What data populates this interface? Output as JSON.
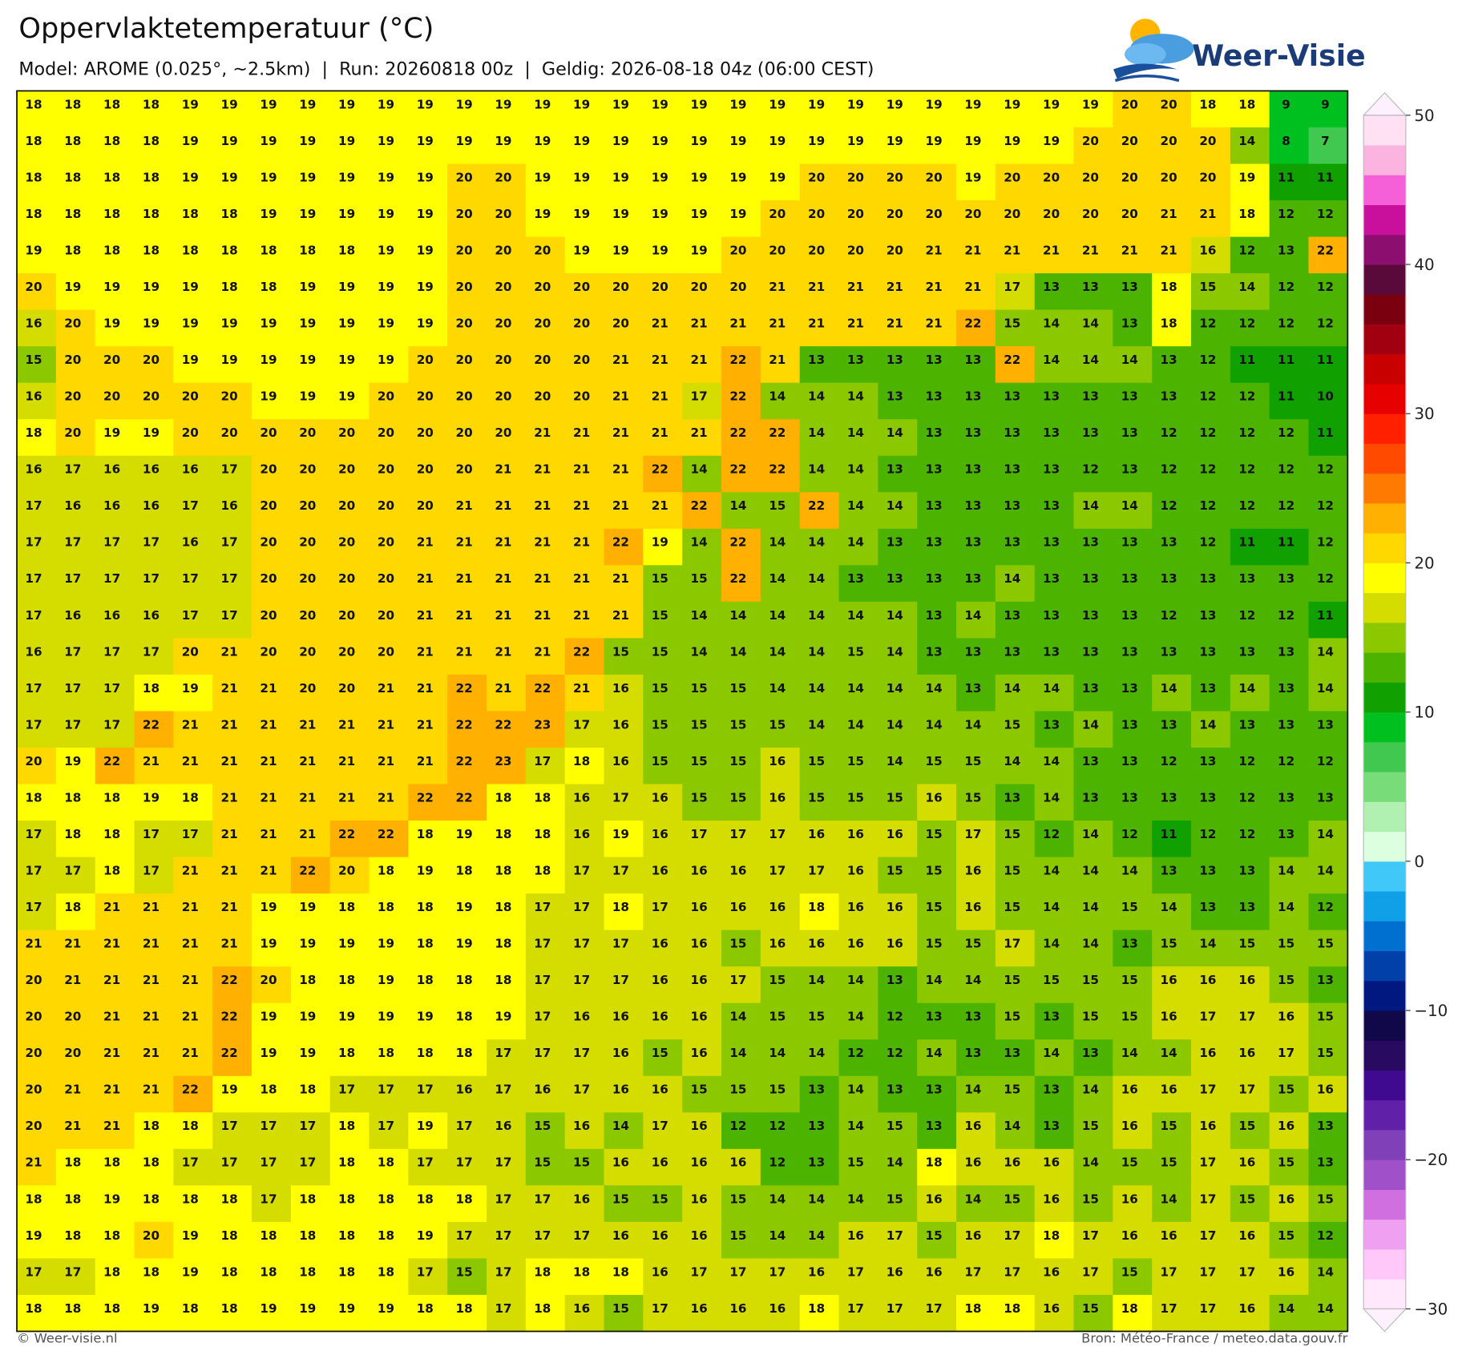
{
  "header": {
    "title": "Oppervlaktetemperatuur (°C)",
    "subtitle": "Model: AROME (0.025°, ~2.5km)  |  Run: 20260818 00z  |  Geldig: 2026-08-18 04z (06:00 CEST)",
    "logo": "Weer-Visie"
  },
  "map": {
    "values": [
      [
        18,
        18,
        18,
        18,
        19,
        19,
        19,
        19,
        19,
        19,
        19,
        19,
        19,
        19,
        19,
        19,
        19,
        19,
        19,
        19,
        19,
        19,
        19,
        19,
        19,
        19,
        19,
        19,
        20,
        20,
        18,
        18,
        9,
        9
      ],
      [
        18,
        18,
        18,
        18,
        19,
        19,
        19,
        19,
        19,
        19,
        19,
        19,
        19,
        19,
        19,
        19,
        19,
        19,
        19,
        19,
        19,
        19,
        19,
        19,
        19,
        19,
        19,
        20,
        20,
        20,
        20,
        14,
        8,
        7
      ],
      [
        18,
        18,
        18,
        18,
        19,
        19,
        19,
        19,
        19,
        19,
        19,
        20,
        20,
        19,
        19,
        19,
        19,
        19,
        19,
        19,
        20,
        20,
        20,
        20,
        19,
        20,
        20,
        20,
        20,
        20,
        20,
        19,
        11,
        11
      ],
      [
        18,
        18,
        18,
        18,
        18,
        18,
        19,
        19,
        19,
        19,
        19,
        20,
        20,
        19,
        19,
        19,
        19,
        19,
        19,
        20,
        20,
        20,
        20,
        20,
        20,
        20,
        20,
        20,
        20,
        21,
        21,
        18,
        12,
        12
      ],
      [
        19,
        18,
        18,
        18,
        18,
        18,
        18,
        18,
        18,
        19,
        19,
        20,
        20,
        20,
        19,
        19,
        19,
        19,
        20,
        20,
        20,
        20,
        20,
        21,
        21,
        21,
        21,
        21,
        21,
        21,
        16,
        12,
        13,
        22
      ],
      [
        20,
        19,
        19,
        19,
        19,
        18,
        18,
        19,
        19,
        19,
        19,
        20,
        20,
        20,
        20,
        20,
        20,
        20,
        20,
        21,
        21,
        21,
        21,
        21,
        21,
        17,
        13,
        13,
        13,
        18,
        15,
        14,
        12,
        12
      ],
      [
        16,
        20,
        19,
        19,
        19,
        19,
        19,
        19,
        19,
        19,
        19,
        20,
        20,
        20,
        20,
        20,
        21,
        21,
        21,
        21,
        21,
        21,
        21,
        21,
        22,
        15,
        14,
        14,
        13,
        18,
        12,
        12,
        12,
        12
      ],
      [
        15,
        20,
        20,
        20,
        19,
        19,
        19,
        19,
        19,
        19,
        20,
        20,
        20,
        20,
        20,
        21,
        21,
        21,
        22,
        21,
        13,
        13,
        13,
        13,
        13,
        22,
        14,
        14,
        14,
        13,
        12,
        11,
        11,
        11
      ],
      [
        16,
        20,
        20,
        20,
        20,
        20,
        19,
        19,
        19,
        20,
        20,
        20,
        20,
        20,
        20,
        21,
        21,
        17,
        22,
        14,
        14,
        14,
        13,
        13,
        13,
        13,
        13,
        13,
        13,
        13,
        12,
        12,
        11,
        10
      ],
      [
        18,
        20,
        19,
        19,
        20,
        20,
        20,
        20,
        20,
        20,
        20,
        20,
        20,
        21,
        21,
        21,
        21,
        21,
        22,
        22,
        14,
        14,
        14,
        13,
        13,
        13,
        13,
        13,
        13,
        12,
        12,
        12,
        12,
        11
      ],
      [
        16,
        17,
        16,
        16,
        16,
        17,
        20,
        20,
        20,
        20,
        20,
        20,
        21,
        21,
        21,
        21,
        22,
        14,
        22,
        22,
        14,
        14,
        13,
        13,
        13,
        13,
        13,
        12,
        13,
        12,
        12,
        12,
        12,
        12
      ],
      [
        17,
        16,
        16,
        16,
        17,
        16,
        20,
        20,
        20,
        20,
        20,
        21,
        21,
        21,
        21,
        21,
        21,
        22,
        14,
        15,
        22,
        14,
        14,
        13,
        13,
        13,
        13,
        14,
        14,
        12,
        12,
        12,
        12,
        12
      ],
      [
        17,
        17,
        17,
        17,
        16,
        17,
        20,
        20,
        20,
        20,
        21,
        21,
        21,
        21,
        21,
        22,
        19,
        14,
        22,
        14,
        14,
        14,
        13,
        13,
        13,
        13,
        13,
        13,
        13,
        13,
        12,
        11,
        11,
        12
      ],
      [
        17,
        17,
        17,
        17,
        17,
        17,
        20,
        20,
        20,
        20,
        21,
        21,
        21,
        21,
        21,
        21,
        15,
        15,
        22,
        14,
        14,
        13,
        13,
        13,
        13,
        14,
        13,
        13,
        13,
        13,
        13,
        13,
        13,
        12
      ],
      [
        17,
        16,
        16,
        16,
        17,
        17,
        20,
        20,
        20,
        20,
        21,
        21,
        21,
        21,
        21,
        21,
        15,
        14,
        14,
        14,
        14,
        14,
        14,
        13,
        14,
        13,
        13,
        13,
        13,
        12,
        13,
        12,
        12,
        11
      ],
      [
        16,
        17,
        17,
        17,
        20,
        21,
        20,
        20,
        20,
        20,
        21,
        21,
        21,
        21,
        22,
        15,
        15,
        14,
        14,
        14,
        14,
        15,
        14,
        13,
        13,
        13,
        13,
        13,
        13,
        13,
        13,
        13,
        13,
        14
      ],
      [
        17,
        17,
        17,
        18,
        19,
        21,
        21,
        20,
        20,
        21,
        21,
        22,
        21,
        22,
        21,
        16,
        15,
        15,
        15,
        14,
        14,
        14,
        14,
        14,
        13,
        14,
        14,
        13,
        13,
        14,
        13,
        14,
        13,
        14
      ],
      [
        17,
        17,
        17,
        22,
        21,
        21,
        21,
        21,
        21,
        21,
        21,
        22,
        22,
        23,
        17,
        16,
        15,
        15,
        15,
        15,
        14,
        14,
        14,
        14,
        14,
        15,
        13,
        14,
        13,
        13,
        14,
        13,
        13,
        13
      ],
      [
        20,
        19,
        22,
        21,
        21,
        21,
        21,
        21,
        21,
        21,
        21,
        22,
        23,
        17,
        18,
        16,
        15,
        15,
        15,
        16,
        15,
        15,
        14,
        15,
        15,
        14,
        14,
        13,
        13,
        12,
        13,
        12,
        12,
        12
      ],
      [
        18,
        18,
        18,
        19,
        18,
        21,
        21,
        21,
        21,
        21,
        22,
        22,
        18,
        18,
        16,
        17,
        16,
        15,
        15,
        16,
        15,
        15,
        15,
        16,
        15,
        13,
        14,
        13,
        13,
        13,
        13,
        12,
        13,
        13
      ],
      [
        17,
        18,
        18,
        17,
        17,
        21,
        21,
        21,
        22,
        22,
        18,
        19,
        18,
        18,
        16,
        19,
        16,
        17,
        17,
        17,
        16,
        16,
        16,
        15,
        17,
        15,
        12,
        14,
        12,
        11,
        12,
        12,
        13,
        14
      ],
      [
        17,
        17,
        18,
        17,
        21,
        21,
        21,
        22,
        20,
        18,
        19,
        18,
        18,
        18,
        17,
        17,
        16,
        16,
        16,
        17,
        17,
        16,
        15,
        15,
        16,
        15,
        14,
        14,
        14,
        13,
        13,
        13,
        14,
        14
      ],
      [
        17,
        18,
        21,
        21,
        21,
        21,
        19,
        19,
        18,
        18,
        18,
        19,
        18,
        17,
        17,
        18,
        17,
        16,
        16,
        16,
        18,
        16,
        16,
        15,
        16,
        15,
        14,
        14,
        15,
        14,
        13,
        13,
        14,
        12
      ],
      [
        21,
        21,
        21,
        21,
        21,
        21,
        19,
        19,
        19,
        19,
        18,
        19,
        18,
        17,
        17,
        17,
        16,
        16,
        15,
        16,
        16,
        16,
        16,
        15,
        15,
        17,
        14,
        14,
        13,
        15,
        14,
        15,
        15,
        15
      ],
      [
        20,
        21,
        21,
        21,
        21,
        22,
        20,
        18,
        18,
        19,
        18,
        18,
        18,
        17,
        17,
        17,
        16,
        16,
        17,
        15,
        14,
        14,
        13,
        14,
        14,
        15,
        15,
        15,
        15,
        16,
        16,
        16,
        15,
        13
      ],
      [
        20,
        20,
        21,
        21,
        21,
        22,
        19,
        19,
        19,
        19,
        19,
        18,
        19,
        17,
        16,
        16,
        16,
        16,
        14,
        15,
        15,
        14,
        12,
        13,
        13,
        15,
        13,
        15,
        15,
        16,
        17,
        17,
        16,
        15
      ],
      [
        20,
        20,
        21,
        21,
        21,
        22,
        19,
        19,
        18,
        18,
        18,
        18,
        17,
        17,
        17,
        16,
        15,
        16,
        14,
        14,
        14,
        12,
        12,
        14,
        13,
        13,
        14,
        13,
        14,
        14,
        16,
        16,
        17,
        15
      ],
      [
        20,
        21,
        21,
        21,
        22,
        19,
        18,
        18,
        17,
        17,
        17,
        16,
        17,
        16,
        17,
        16,
        16,
        15,
        15,
        15,
        13,
        14,
        13,
        13,
        14,
        15,
        13,
        14,
        16,
        16,
        17,
        17,
        15,
        16
      ],
      [
        20,
        21,
        21,
        18,
        18,
        17,
        17,
        17,
        18,
        17,
        19,
        17,
        16,
        15,
        16,
        14,
        17,
        16,
        12,
        12,
        13,
        14,
        15,
        13,
        16,
        14,
        13,
        15,
        16,
        15,
        16,
        15,
        16,
        13
      ],
      [
        21,
        18,
        18,
        18,
        17,
        17,
        17,
        17,
        18,
        18,
        17,
        17,
        17,
        15,
        15,
        16,
        16,
        16,
        16,
        12,
        13,
        15,
        14,
        18,
        16,
        16,
        16,
        14,
        15,
        15,
        17,
        16,
        15,
        13
      ],
      [
        18,
        18,
        19,
        18,
        18,
        18,
        17,
        18,
        18,
        18,
        18,
        18,
        17,
        17,
        16,
        15,
        15,
        16,
        15,
        14,
        14,
        14,
        15,
        16,
        14,
        15,
        16,
        15,
        16,
        14,
        17,
        15,
        16,
        15
      ],
      [
        19,
        18,
        18,
        20,
        19,
        18,
        18,
        18,
        18,
        18,
        19,
        17,
        17,
        17,
        17,
        16,
        16,
        16,
        15,
        14,
        14,
        16,
        17,
        15,
        16,
        17,
        18,
        17,
        16,
        16,
        17,
        16,
        15,
        12
      ],
      [
        17,
        17,
        18,
        18,
        19,
        18,
        18,
        18,
        18,
        18,
        17,
        15,
        17,
        18,
        18,
        18,
        16,
        17,
        17,
        17,
        16,
        17,
        16,
        16,
        17,
        17,
        16,
        17,
        15,
        17,
        17,
        17,
        16,
        14
      ],
      [
        18,
        18,
        18,
        19,
        18,
        18,
        19,
        19,
        19,
        19,
        18,
        18,
        17,
        18,
        16,
        15,
        17,
        16,
        16,
        16,
        18,
        17,
        17,
        17,
        18,
        18,
        16,
        15,
        18,
        17,
        17,
        16,
        14,
        14
      ]
    ]
  },
  "colorbar": {
    "lim": [
      -30,
      50
    ],
    "ticks": [
      {
        "value": 50,
        "label": "50"
      },
      {
        "value": 40,
        "label": "40"
      },
      {
        "value": 30,
        "label": "30"
      },
      {
        "value": 20,
        "label": "20"
      },
      {
        "value": 10,
        "label": "10"
      },
      {
        "value": 0,
        "label": "0"
      },
      {
        "value": -10,
        "label": "−10"
      },
      {
        "value": -20,
        "label": "−20"
      },
      {
        "value": -30,
        "label": "−30"
      }
    ],
    "colors": [
      "#ffe8fc",
      "#ffc8f8",
      "#f0a0f0",
      "#d070e0",
      "#a050c8",
      "#8040b8",
      "#6020a8",
      "#400a90",
      "#280a60",
      "#100848",
      "#001880",
      "#0040a8",
      "#0070d0",
      "#10a0e8",
      "#40c8f8",
      "#dcffe0",
      "#b0f0b0",
      "#78dc78",
      "#40c850",
      "#00c020",
      "#10a000",
      "#4cb400",
      "#8cc800",
      "#d4dc00",
      "#ffff00",
      "#ffd800",
      "#ffb000",
      "#ff7a00",
      "#ff4a00",
      "#ff2000",
      "#e60000",
      "#c80000",
      "#a00010",
      "#7a0010",
      "#5a0a3a",
      "#8c0e6e",
      "#c8109c",
      "#f55fd8",
      "#fbb3e0",
      "#ffe1f3"
    ],
    "under_color": "#fff0fe",
    "over_color": "#fff0fe"
  },
  "footer": {
    "left": "© Weer-visie.nl",
    "right": "Bron: Météo-France / meteo.data.gouv.fr"
  }
}
